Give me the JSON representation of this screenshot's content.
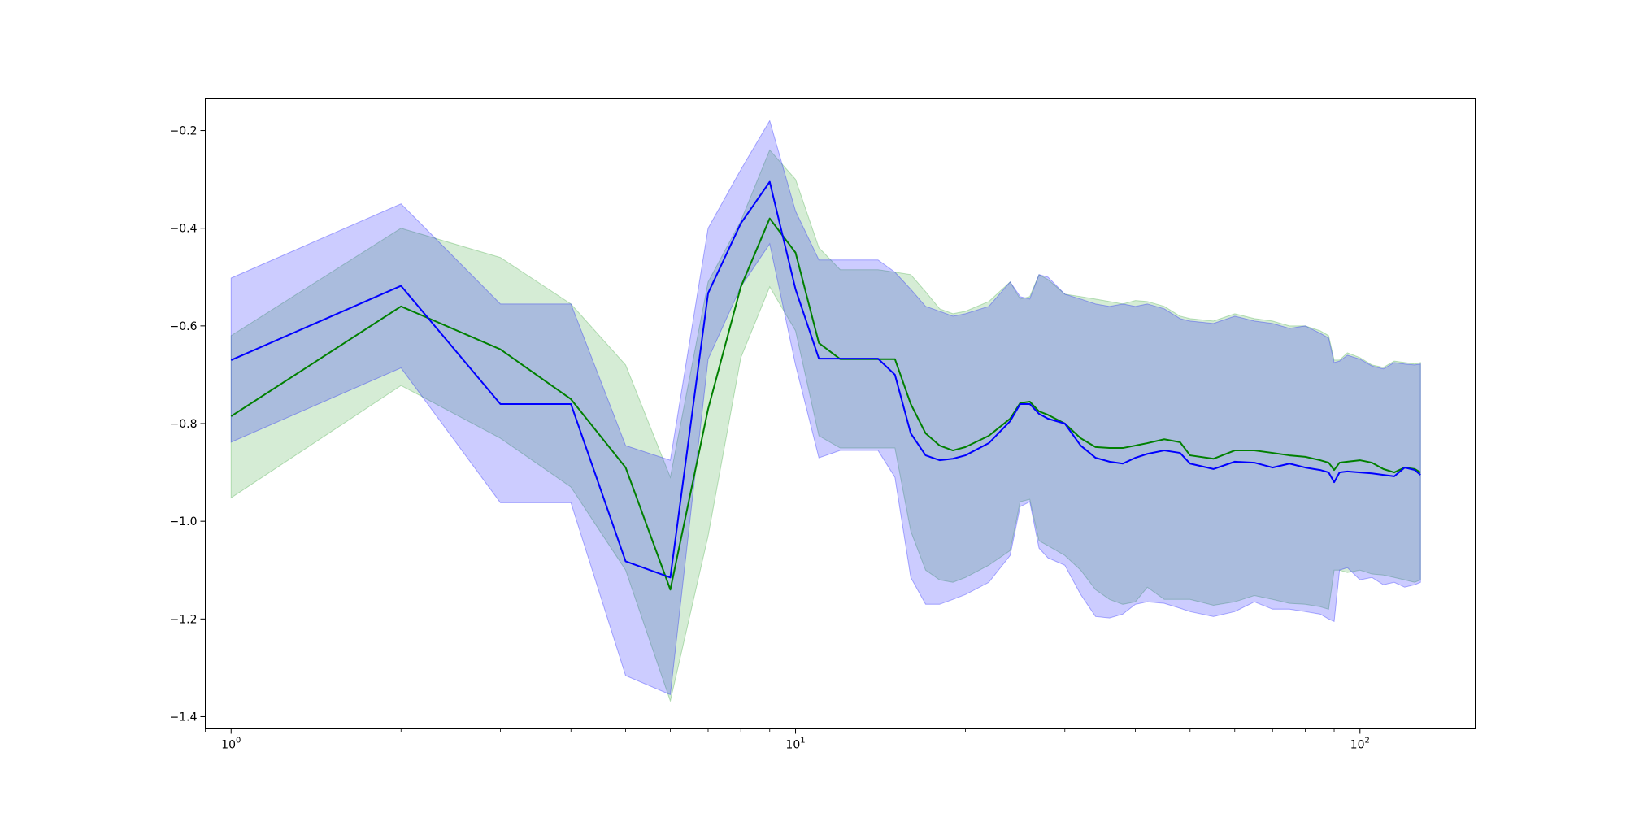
{
  "chart_data": {
    "type": "line",
    "xscale": "log",
    "xlim": [
      0.9,
      160
    ],
    "ylim": [
      -1.425,
      -0.135
    ],
    "xticks": [
      {
        "value": 1,
        "base": "10",
        "exp": "0"
      },
      {
        "value": 10,
        "base": "10",
        "exp": "1"
      },
      {
        "value": 100,
        "base": "10",
        "exp": "2"
      }
    ],
    "yticks": [
      {
        "value": -1.4,
        "label": "−1.4"
      },
      {
        "value": -1.2,
        "label": "−1.2"
      },
      {
        "value": -1.0,
        "label": "−1.0"
      },
      {
        "value": -0.8,
        "label": "−0.8"
      },
      {
        "value": -0.6,
        "label": "−0.6"
      },
      {
        "value": -0.4,
        "label": "−0.4"
      },
      {
        "value": -0.2,
        "label": "−0.2"
      }
    ],
    "grid": false,
    "series": [
      {
        "color": "#008000",
        "band_color": "#2ca02c",
        "x": [
          1,
          2,
          3,
          4,
          5,
          6,
          7,
          8,
          9,
          10,
          11,
          12,
          14,
          15,
          16,
          17,
          18,
          19,
          20,
          22,
          24,
          25,
          26,
          27,
          28,
          30,
          32,
          34,
          36,
          38,
          40,
          42,
          45,
          48,
          50,
          55,
          60,
          65,
          70,
          75,
          80,
          85,
          88,
          90,
          92,
          95,
          100,
          105,
          110,
          115,
          120,
          125,
          128
        ],
        "y": [
          -0.785,
          -0.56,
          -0.648,
          -0.75,
          -0.89,
          -1.14,
          -0.77,
          -0.52,
          -0.38,
          -0.45,
          -0.635,
          -0.668,
          -0.668,
          -0.668,
          -0.76,
          -0.82,
          -0.845,
          -0.855,
          -0.848,
          -0.825,
          -0.79,
          -0.758,
          -0.755,
          -0.775,
          -0.782,
          -0.8,
          -0.83,
          -0.848,
          -0.85,
          -0.85,
          -0.845,
          -0.84,
          -0.832,
          -0.838,
          -0.865,
          -0.872,
          -0.855,
          -0.855,
          -0.86,
          -0.865,
          -0.868,
          -0.875,
          -0.88,
          -0.895,
          -0.88,
          -0.878,
          -0.875,
          -0.88,
          -0.893,
          -0.9,
          -0.89,
          -0.893,
          -0.9
        ],
        "lower": [
          -0.952,
          -0.722,
          -0.83,
          -0.93,
          -1.1,
          -1.368,
          -1.03,
          -0.665,
          -0.52,
          -0.61,
          -0.825,
          -0.85,
          -0.85,
          -0.85,
          -1.02,
          -1.1,
          -1.12,
          -1.125,
          -1.115,
          -1.09,
          -1.06,
          -0.96,
          -0.955,
          -1.04,
          -1.05,
          -1.07,
          -1.1,
          -1.14,
          -1.16,
          -1.17,
          -1.165,
          -1.135,
          -1.16,
          -1.16,
          -1.16,
          -1.172,
          -1.165,
          -1.152,
          -1.16,
          -1.168,
          -1.17,
          -1.175,
          -1.18,
          -1.1,
          -1.1,
          -1.105,
          -1.1,
          -1.108,
          -1.11,
          -1.115,
          -1.12,
          -1.125,
          -1.12
        ],
        "upper": [
          -0.62,
          -0.4,
          -0.46,
          -0.555,
          -0.68,
          -0.91,
          -0.51,
          -0.385,
          -0.24,
          -0.3,
          -0.44,
          -0.485,
          -0.485,
          -0.49,
          -0.495,
          -0.53,
          -0.565,
          -0.575,
          -0.57,
          -0.55,
          -0.51,
          -0.545,
          -0.54,
          -0.495,
          -0.505,
          -0.535,
          -0.54,
          -0.545,
          -0.55,
          -0.555,
          -0.548,
          -0.55,
          -0.56,
          -0.58,
          -0.585,
          -0.59,
          -0.575,
          -0.585,
          -0.59,
          -0.6,
          -0.6,
          -0.61,
          -0.62,
          -0.67,
          -0.67,
          -0.655,
          -0.665,
          -0.68,
          -0.685,
          -0.672,
          -0.675,
          -0.678,
          -0.675
        ]
      },
      {
        "color": "#0000ff",
        "band_color": "#0000ff",
        "x": [
          1,
          2,
          3,
          4,
          5,
          6,
          7,
          8,
          9,
          10,
          11,
          12,
          14,
          15,
          16,
          17,
          18,
          19,
          20,
          22,
          24,
          25,
          26,
          27,
          28,
          30,
          32,
          34,
          36,
          38,
          40,
          42,
          45,
          48,
          50,
          55,
          60,
          65,
          70,
          75,
          80,
          85,
          88,
          90,
          92,
          95,
          100,
          105,
          110,
          115,
          120,
          125,
          128
        ],
        "y": [
          -0.67,
          -0.518,
          -0.76,
          -0.76,
          -1.082,
          -1.115,
          -0.533,
          -0.39,
          -0.305,
          -0.525,
          -0.667,
          -0.667,
          -0.667,
          -0.7,
          -0.82,
          -0.865,
          -0.875,
          -0.872,
          -0.865,
          -0.84,
          -0.795,
          -0.76,
          -0.76,
          -0.78,
          -0.79,
          -0.8,
          -0.845,
          -0.87,
          -0.878,
          -0.882,
          -0.87,
          -0.862,
          -0.855,
          -0.86,
          -0.882,
          -0.893,
          -0.878,
          -0.88,
          -0.89,
          -0.882,
          -0.89,
          -0.895,
          -0.9,
          -0.92,
          -0.9,
          -0.898,
          -0.9,
          -0.902,
          -0.905,
          -0.908,
          -0.89,
          -0.895,
          -0.905
        ],
        "lower": [
          -0.838,
          -0.686,
          -0.962,
          -0.962,
          -1.316,
          -1.355,
          -0.668,
          -0.52,
          -0.432,
          -0.68,
          -0.87,
          -0.855,
          -0.855,
          -0.91,
          -1.115,
          -1.17,
          -1.17,
          -1.16,
          -1.15,
          -1.125,
          -1.07,
          -0.97,
          -0.96,
          -1.055,
          -1.075,
          -1.09,
          -1.15,
          -1.195,
          -1.198,
          -1.19,
          -1.17,
          -1.165,
          -1.168,
          -1.178,
          -1.185,
          -1.195,
          -1.185,
          -1.165,
          -1.18,
          -1.18,
          -1.185,
          -1.19,
          -1.2,
          -1.205,
          -1.1,
          -1.095,
          -1.12,
          -1.115,
          -1.13,
          -1.125,
          -1.135,
          -1.13,
          -1.125
        ],
        "upper": [
          -0.502,
          -0.35,
          -0.555,
          -0.555,
          -0.845,
          -0.875,
          -0.4,
          -0.28,
          -0.18,
          -0.365,
          -0.465,
          -0.465,
          -0.465,
          -0.49,
          -0.525,
          -0.56,
          -0.57,
          -0.58,
          -0.575,
          -0.56,
          -0.51,
          -0.54,
          -0.545,
          -0.495,
          -0.5,
          -0.535,
          -0.545,
          -0.555,
          -0.56,
          -0.555,
          -0.56,
          -0.555,
          -0.565,
          -0.585,
          -0.59,
          -0.595,
          -0.58,
          -0.59,
          -0.595,
          -0.605,
          -0.6,
          -0.615,
          -0.625,
          -0.675,
          -0.672,
          -0.66,
          -0.668,
          -0.682,
          -0.688,
          -0.675,
          -0.678,
          -0.68,
          -0.678
        ]
      }
    ]
  }
}
